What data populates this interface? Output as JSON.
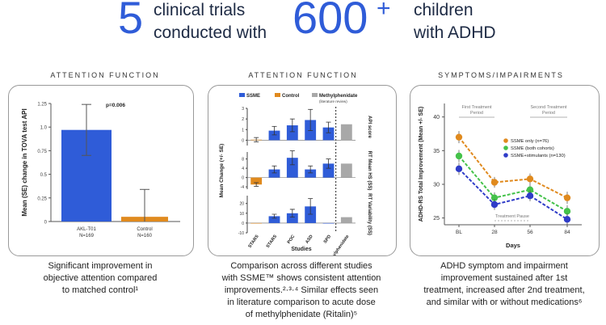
{
  "header": {
    "trials_number": "5",
    "trials_line1": "clinical trials",
    "trials_line2": "conducted with",
    "children_number": "600",
    "children_plus": "+",
    "children_line1": "children",
    "children_line2": "with ADHD",
    "accent_color": "#2f5cd8"
  },
  "sections": [
    {
      "title": "ATTENTION FUNCTION",
      "caption": [
        "Significant improvement in",
        "objective attention compared",
        "to matched control¹"
      ]
    },
    {
      "title": "ATTENTION FUNCTION",
      "caption": [
        "Comparison across different studies",
        "with SSME™ shows consistent attention",
        "improvements.²·³·⁴ Similar effects seen",
        "in literature comparison to acute dose",
        "of methylphenidate (Ritalin)⁵"
      ]
    },
    {
      "title": "SYMPTOMS/IMPAIRMENTS",
      "caption": [
        "ADHD symptom and impairment",
        "improvement sustained after 1st",
        "treatment, increased after 2nd treatment,",
        "and similar with or without medications⁶"
      ]
    }
  ],
  "chart_data": [
    {
      "type": "bar",
      "ylabel": "Mean (SE) change in TOVA test API",
      "ylim": [
        0,
        1.25
      ],
      "yticks": [
        "0",
        "0.25",
        "0.5",
        "0.75",
        "1.0",
        "1.25"
      ],
      "annotation": "p=0.006",
      "categories": [
        {
          "label": "AKL-T01",
          "sub": "N=169",
          "value": 0.97,
          "err_low": 0.7,
          "err_high": 1.24,
          "color": "#2f5cd8"
        },
        {
          "label": "Control",
          "sub": "N=160",
          "value": 0.05,
          "err_low": 0.0,
          "err_high": 0.34,
          "color": "#e08a1e"
        }
      ]
    },
    {
      "type": "bar",
      "legend": [
        {
          "name": "SSME",
          "color": "#2f5cd8"
        },
        {
          "name": "Control",
          "color": "#e08a1e"
        },
        {
          "name": "Methylphenidate",
          "sub": "(literature review)",
          "color": "#a8a8a8"
        }
      ],
      "xlabel": "Studies",
      "ylabel": "Mean Change (+/- SE)",
      "categories": [
        "STARS",
        "STARS",
        "POC",
        "ASD",
        "SPD",
        "Methylphenidate"
      ],
      "rows": [
        {
          "name": "API score",
          "yticks": [
            "3",
            "2",
            "1",
            "0"
          ],
          "ylim": [
            -0.5,
            3
          ],
          "values": [
            0.05,
            0.9,
            1.4,
            1.9,
            1.2,
            1.5
          ],
          "errors": [
            0.2,
            0.4,
            0.6,
            1.0,
            0.5,
            0
          ],
          "colors": [
            "#e08a1e",
            "#2f5cd8",
            "#2f5cd8",
            "#2f5cd8",
            "#2f5cd8",
            "#a8a8a8"
          ]
        },
        {
          "name": "RT Mean HS (SS)",
          "yticks": [
            "8",
            "4",
            "0",
            "-4"
          ],
          "ylim": [
            -5,
            11
          ],
          "values": [
            -3.0,
            3.5,
            8.5,
            3.5,
            6.0,
            6.0
          ],
          "errors": [
            0.8,
            1.5,
            3.0,
            1.5,
            2.0,
            0
          ],
          "colors": [
            "#e08a1e",
            "#2f5cd8",
            "#2f5cd8",
            "#2f5cd8",
            "#2f5cd8",
            "#a8a8a8"
          ]
        },
        {
          "name": "RT Variability (SS)",
          "yticks": [
            "20",
            "10",
            "0",
            "-10"
          ],
          "ylim": [
            -10,
            28
          ],
          "values": [
            0,
            7,
            10,
            17,
            0,
            6
          ],
          "errors": [
            0,
            2,
            4,
            8,
            0,
            0
          ],
          "colors": [
            "#e08a1e",
            "#2f5cd8",
            "#2f5cd8",
            "#2f5cd8",
            "#2f5cd8",
            "#a8a8a8"
          ]
        }
      ]
    },
    {
      "type": "line",
      "ylabel": "ADHD-RS Total Improvement (Mean +/- SE)",
      "xlabel": "Days",
      "x": [
        "BL",
        "28",
        "56",
        "84"
      ],
      "ylim": [
        24,
        42
      ],
      "yticks": [
        25,
        30,
        35,
        40
      ],
      "annotations": [
        {
          "text": "First Treatment",
          "text2": "Period"
        },
        {
          "text": "Second Treatment",
          "text2": "Period"
        },
        {
          "text": "Treatment Pause"
        }
      ],
      "series": [
        {
          "name": "SSME only (n=76)",
          "color": "#e08a1e",
          "values": [
            37.0,
            30.3,
            30.8,
            28.0
          ],
          "errors": [
            0.9,
            0.8,
            0.8,
            0.9
          ]
        },
        {
          "name": "SSME (both cohorts)",
          "color": "#44c24a",
          "values": [
            34.2,
            28.0,
            29.2,
            26.0
          ],
          "errors": [
            0.9,
            0.8,
            0.8,
            0.9
          ]
        },
        {
          "name": "SSME+stimulants (n=130)",
          "color": "#2f3cc8",
          "values": [
            32.3,
            27.0,
            28.3,
            24.8
          ],
          "errors": [
            0.9,
            0.8,
            0.8,
            0.9
          ]
        }
      ]
    }
  ]
}
